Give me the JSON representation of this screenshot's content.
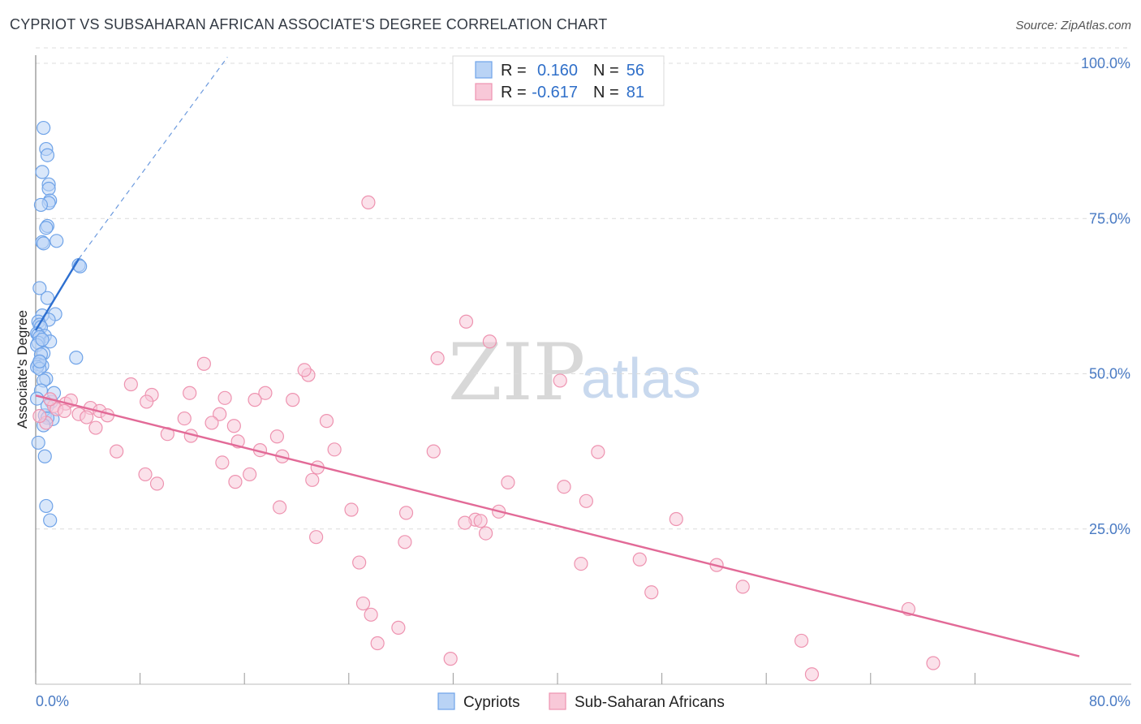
{
  "chart_data": {
    "type": "scatter",
    "title": "CYPRIOT VS SUBSAHARAN AFRICAN ASSOCIATE'S DEGREE CORRELATION CHART",
    "source": "Source: ZipAtlas.com",
    "xlabel": "",
    "ylabel": "Associate's Degree",
    "xlim": [
      0,
      80
    ],
    "ylim": [
      0,
      100
    ],
    "x_tick_labels": [
      "0.0%",
      "80.0%"
    ],
    "y_tick_labels": [
      "100.0%",
      "75.0%",
      "50.0%",
      "25.0%"
    ],
    "y_tick_values": [
      100,
      75,
      50,
      25
    ],
    "watermark": {
      "zip": "ZIP",
      "atlas": "atlas"
    },
    "legend_top": [
      {
        "r_label": "R = ",
        "r_value": "0.160",
        "n_label": "N = ",
        "n_value": "56"
      },
      {
        "r_label": "R = ",
        "r_value": "-0.617",
        "n_label": "N = ",
        "n_value": "81"
      }
    ],
    "series": [
      {
        "name": "Cypriots",
        "color": "#6fa3e8",
        "fill": "#b9d3f5",
        "line_color": "#2d6fd0",
        "trend_solid": [
          [
            0.0,
            57.0
          ],
          [
            3.3,
            68.5
          ]
        ],
        "trend_dashed": [
          [
            3.3,
            68.5
          ],
          [
            14.7,
            101.0
          ]
        ],
        "points": [
          [
            0.6,
            89.6
          ],
          [
            0.8,
            86.2
          ],
          [
            0.9,
            85.2
          ],
          [
            0.5,
            82.5
          ],
          [
            1.0,
            80.5
          ],
          [
            1.0,
            79.8
          ],
          [
            1.1,
            77.9
          ],
          [
            1.0,
            77.5
          ],
          [
            0.4,
            77.2
          ],
          [
            0.9,
            73.8
          ],
          [
            0.8,
            73.5
          ],
          [
            0.5,
            71.2
          ],
          [
            0.6,
            71.0
          ],
          [
            1.6,
            71.4
          ],
          [
            3.3,
            67.5
          ],
          [
            3.4,
            67.3
          ],
          [
            0.3,
            63.8
          ],
          [
            0.9,
            62.2
          ],
          [
            1.5,
            59.6
          ],
          [
            0.5,
            59.4
          ],
          [
            1.0,
            58.7
          ],
          [
            0.2,
            58.4
          ],
          [
            0.3,
            57.9
          ],
          [
            0.4,
            57.5
          ],
          [
            0.1,
            56.5
          ],
          [
            0.2,
            56.3
          ],
          [
            0.7,
            56.1
          ],
          [
            0.3,
            55.9
          ],
          [
            1.1,
            55.2
          ],
          [
            0.2,
            55.0
          ],
          [
            0.1,
            54.6
          ],
          [
            0.6,
            53.3
          ],
          [
            0.4,
            53.1
          ],
          [
            3.1,
            52.6
          ],
          [
            0.3,
            51.9
          ],
          [
            0.2,
            51.5
          ],
          [
            0.5,
            51.3
          ],
          [
            0.1,
            51.1
          ],
          [
            0.3,
            50.8
          ],
          [
            0.8,
            49.2
          ],
          [
            0.6,
            48.9
          ],
          [
            0.4,
            47.3
          ],
          [
            0.1,
            46.0
          ],
          [
            0.7,
            43.3
          ],
          [
            1.3,
            42.7
          ],
          [
            0.2,
            38.9
          ],
          [
            0.7,
            36.7
          ],
          [
            0.8,
            28.7
          ],
          [
            1.1,
            26.4
          ],
          [
            0.9,
            42.9
          ],
          [
            1.2,
            45.5
          ],
          [
            0.3,
            52.0
          ],
          [
            0.5,
            55.5
          ],
          [
            0.9,
            44.8
          ],
          [
            0.6,
            41.7
          ],
          [
            1.4,
            46.9
          ]
        ]
      },
      {
        "name": "Sub-Saharan Africans",
        "color": "#ee93b0",
        "fill": "#f8c8d8",
        "line_color": "#e26a97",
        "trend_solid": [
          [
            0.0,
            46.5
          ],
          [
            80.0,
            4.5
          ]
        ],
        "points": [
          [
            25.5,
            77.6
          ],
          [
            33.0,
            58.4
          ],
          [
            34.8,
            55.2
          ],
          [
            30.8,
            52.5
          ],
          [
            12.9,
            51.6
          ],
          [
            20.9,
            49.8
          ],
          [
            20.6,
            50.6
          ],
          [
            40.2,
            48.9
          ],
          [
            7.3,
            48.3
          ],
          [
            11.8,
            46.9
          ],
          [
            8.9,
            46.6
          ],
          [
            17.6,
            46.9
          ],
          [
            19.7,
            45.8
          ],
          [
            16.8,
            45.8
          ],
          [
            8.5,
            45.5
          ],
          [
            14.5,
            46.1
          ],
          [
            2.3,
            45.2
          ],
          [
            1.4,
            44.8
          ],
          [
            2.7,
            45.7
          ],
          [
            4.2,
            44.5
          ],
          [
            4.9,
            44.0
          ],
          [
            3.3,
            43.5
          ],
          [
            3.9,
            43.0
          ],
          [
            5.5,
            43.3
          ],
          [
            14.1,
            43.5
          ],
          [
            11.4,
            42.8
          ],
          [
            22.3,
            42.4
          ],
          [
            13.5,
            42.1
          ],
          [
            4.6,
            41.3
          ],
          [
            15.2,
            41.6
          ],
          [
            10.1,
            40.3
          ],
          [
            18.5,
            39.9
          ],
          [
            11.9,
            40.0
          ],
          [
            15.5,
            39.1
          ],
          [
            6.2,
            37.5
          ],
          [
            17.2,
            37.7
          ],
          [
            22.9,
            37.8
          ],
          [
            30.5,
            37.5
          ],
          [
            43.1,
            37.4
          ],
          [
            18.9,
            36.7
          ],
          [
            14.3,
            35.7
          ],
          [
            21.6,
            34.9
          ],
          [
            8.4,
            33.8
          ],
          [
            16.4,
            33.8
          ],
          [
            9.3,
            32.3
          ],
          [
            15.3,
            32.6
          ],
          [
            21.2,
            32.9
          ],
          [
            36.2,
            32.5
          ],
          [
            40.5,
            31.8
          ],
          [
            42.2,
            29.5
          ],
          [
            18.7,
            28.5
          ],
          [
            24.2,
            28.1
          ],
          [
            28.4,
            27.6
          ],
          [
            33.7,
            26.5
          ],
          [
            35.5,
            27.8
          ],
          [
            32.9,
            26.0
          ],
          [
            49.1,
            26.6
          ],
          [
            34.1,
            26.3
          ],
          [
            34.5,
            24.3
          ],
          [
            21.5,
            23.7
          ],
          [
            28.3,
            22.9
          ],
          [
            24.8,
            19.6
          ],
          [
            41.8,
            19.4
          ],
          [
            46.3,
            20.1
          ],
          [
            52.2,
            19.2
          ],
          [
            54.2,
            15.7
          ],
          [
            47.2,
            14.8
          ],
          [
            25.1,
            13.0
          ],
          [
            25.7,
            11.2
          ],
          [
            27.8,
            9.1
          ],
          [
            66.9,
            12.1
          ],
          [
            58.7,
            7.0
          ],
          [
            26.2,
            6.6
          ],
          [
            31.8,
            4.1
          ],
          [
            68.8,
            3.4
          ],
          [
            59.5,
            1.6
          ],
          [
            0.8,
            42.1
          ],
          [
            1.6,
            44.3
          ],
          [
            2.2,
            44.0
          ],
          [
            0.3,
            43.2
          ],
          [
            1.1,
            45.9
          ]
        ]
      }
    ]
  }
}
